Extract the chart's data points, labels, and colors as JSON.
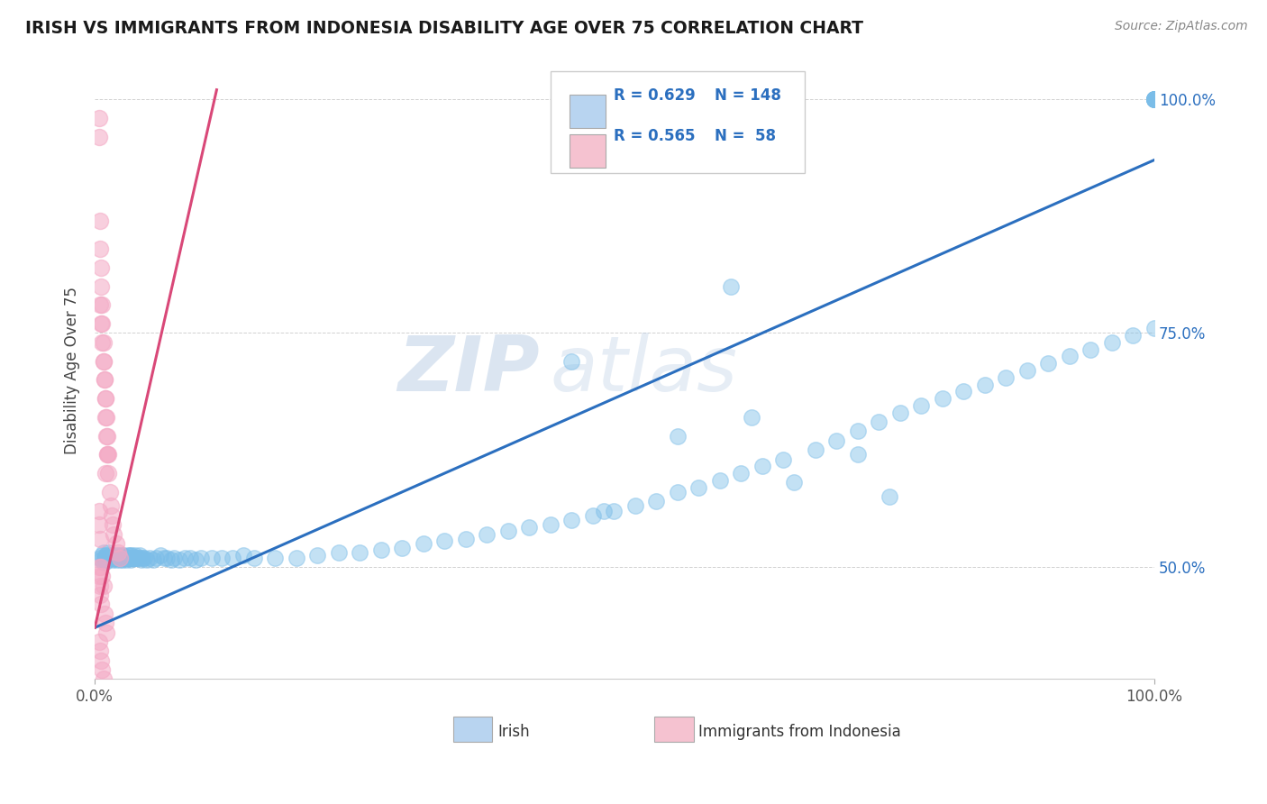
{
  "title": "IRISH VS IMMIGRANTS FROM INDONESIA DISABILITY AGE OVER 75 CORRELATION CHART",
  "source": "Source: ZipAtlas.com",
  "ylabel": "Disability Age Over 75",
  "xlim": [
    0.0,
    1.0
  ],
  "ylim": [
    0.38,
    1.04
  ],
  "xtick_pos": [
    0.0,
    1.0
  ],
  "xtick_labels": [
    "0.0%",
    "100.0%"
  ],
  "ytick_pos": [
    0.5,
    0.75,
    1.0
  ],
  "ytick_labels": [
    "50.0%",
    "75.0%",
    "100.0%"
  ],
  "blue_R": 0.629,
  "blue_N": 148,
  "pink_R": 0.565,
  "pink_N": 58,
  "blue_color": "#7BBDE8",
  "pink_color": "#F4A8C4",
  "blue_line_color": "#2B6FBF",
  "pink_line_color": "#D94878",
  "legend_box_blue": "#B8D4F0",
  "legend_box_pink": "#F5C2D0",
  "watermark_zip": "ZIP",
  "watermark_atlas": "atlas",
  "blue_trend_x": [
    0.0,
    1.0
  ],
  "blue_trend_y": [
    0.435,
    0.935
  ],
  "pink_trend_x": [
    0.0,
    0.115
  ],
  "pink_trend_y": [
    0.435,
    1.01
  ],
  "blue_scatter_x": [
    0.005,
    0.006,
    0.007,
    0.008,
    0.008,
    0.009,
    0.009,
    0.01,
    0.01,
    0.01,
    0.011,
    0.011,
    0.012,
    0.012,
    0.013,
    0.013,
    0.013,
    0.014,
    0.014,
    0.015,
    0.015,
    0.016,
    0.016,
    0.017,
    0.017,
    0.018,
    0.018,
    0.019,
    0.019,
    0.02,
    0.02,
    0.021,
    0.021,
    0.022,
    0.022,
    0.023,
    0.023,
    0.024,
    0.024,
    0.025,
    0.025,
    0.026,
    0.026,
    0.027,
    0.027,
    0.028,
    0.028,
    0.029,
    0.03,
    0.03,
    0.031,
    0.031,
    0.032,
    0.033,
    0.033,
    0.034,
    0.034,
    0.035,
    0.035,
    0.036,
    0.036,
    0.037,
    0.038,
    0.039,
    0.04,
    0.041,
    0.042,
    0.043,
    0.044,
    0.045,
    0.047,
    0.049,
    0.052,
    0.055,
    0.058,
    0.062,
    0.065,
    0.068,
    0.072,
    0.075,
    0.08,
    0.085,
    0.09,
    0.095,
    0.1,
    0.11,
    0.12,
    0.13,
    0.14,
    0.15,
    0.17,
    0.19,
    0.21,
    0.23,
    0.25,
    0.27,
    0.29,
    0.31,
    0.33,
    0.35,
    0.37,
    0.39,
    0.41,
    0.43,
    0.45,
    0.47,
    0.49,
    0.51,
    0.53,
    0.55,
    0.57,
    0.59,
    0.61,
    0.63,
    0.65,
    0.68,
    0.7,
    0.72,
    0.74,
    0.76,
    0.78,
    0.8,
    0.82,
    0.84,
    0.86,
    0.88,
    0.9,
    0.92,
    0.94,
    0.96,
    0.98,
    1.0,
    1.0,
    1.0,
    1.0,
    1.0,
    1.0,
    1.0,
    1.0,
    1.0,
    1.0,
    1.0,
    0.72,
    0.6,
    0.48,
    0.62,
    0.55,
    0.45,
    0.75,
    0.66
  ],
  "blue_scatter_y": [
    0.51,
    0.508,
    0.512,
    0.505,
    0.515,
    0.51,
    0.508,
    0.512,
    0.506,
    0.51,
    0.51,
    0.508,
    0.512,
    0.51,
    0.51,
    0.508,
    0.515,
    0.51,
    0.51,
    0.51,
    0.51,
    0.512,
    0.51,
    0.51,
    0.508,
    0.51,
    0.512,
    0.51,
    0.51,
    0.51,
    0.508,
    0.51,
    0.512,
    0.51,
    0.51,
    0.512,
    0.51,
    0.51,
    0.508,
    0.51,
    0.512,
    0.51,
    0.508,
    0.51,
    0.512,
    0.51,
    0.51,
    0.51,
    0.51,
    0.508,
    0.512,
    0.51,
    0.51,
    0.51,
    0.512,
    0.51,
    0.508,
    0.51,
    0.512,
    0.51,
    0.51,
    0.51,
    0.512,
    0.51,
    0.51,
    0.51,
    0.512,
    0.51,
    0.508,
    0.51,
    0.51,
    0.508,
    0.51,
    0.508,
    0.51,
    0.512,
    0.51,
    0.51,
    0.508,
    0.51,
    0.508,
    0.51,
    0.51,
    0.508,
    0.51,
    0.51,
    0.51,
    0.51,
    0.512,
    0.51,
    0.51,
    0.51,
    0.512,
    0.515,
    0.515,
    0.518,
    0.52,
    0.525,
    0.528,
    0.53,
    0.535,
    0.538,
    0.542,
    0.545,
    0.55,
    0.555,
    0.56,
    0.565,
    0.57,
    0.58,
    0.585,
    0.592,
    0.6,
    0.608,
    0.615,
    0.625,
    0.635,
    0.645,
    0.655,
    0.665,
    0.672,
    0.68,
    0.688,
    0.695,
    0.702,
    0.71,
    0.718,
    0.725,
    0.732,
    0.74,
    0.748,
    0.755,
    1.0,
    1.0,
    1.0,
    1.0,
    1.0,
    1.0,
    1.0,
    1.0,
    1.0,
    1.0,
    0.62,
    0.8,
    0.56,
    0.66,
    0.64,
    0.72,
    0.575,
    0.59
  ],
  "pink_scatter_x": [
    0.004,
    0.004,
    0.005,
    0.005,
    0.006,
    0.006,
    0.007,
    0.007,
    0.008,
    0.008,
    0.009,
    0.01,
    0.01,
    0.011,
    0.012,
    0.013,
    0.014,
    0.015,
    0.016,
    0.017,
    0.018,
    0.02,
    0.022,
    0.024,
    0.005,
    0.006,
    0.007,
    0.008,
    0.009,
    0.01,
    0.011,
    0.012,
    0.013,
    0.004,
    0.004,
    0.005,
    0.005,
    0.006,
    0.004,
    0.004,
    0.005,
    0.006,
    0.007,
    0.008,
    0.009,
    0.01,
    0.011,
    0.004,
    0.005,
    0.006,
    0.007,
    0.008,
    0.009,
    0.004,
    0.005,
    0.01,
    0.012
  ],
  "pink_scatter_y": [
    0.98,
    0.96,
    0.87,
    0.84,
    0.82,
    0.8,
    0.78,
    0.76,
    0.74,
    0.72,
    0.7,
    0.68,
    0.66,
    0.64,
    0.62,
    0.6,
    0.58,
    0.565,
    0.555,
    0.545,
    0.535,
    0.525,
    0.515,
    0.51,
    0.78,
    0.76,
    0.74,
    0.72,
    0.7,
    0.68,
    0.66,
    0.64,
    0.62,
    0.5,
    0.49,
    0.48,
    0.47,
    0.46,
    0.56,
    0.545,
    0.53,
    0.5,
    0.49,
    0.48,
    0.45,
    0.44,
    0.43,
    0.42,
    0.41,
    0.4,
    0.39,
    0.38,
    0.37,
    0.34,
    0.33,
    0.6,
    0.62
  ]
}
